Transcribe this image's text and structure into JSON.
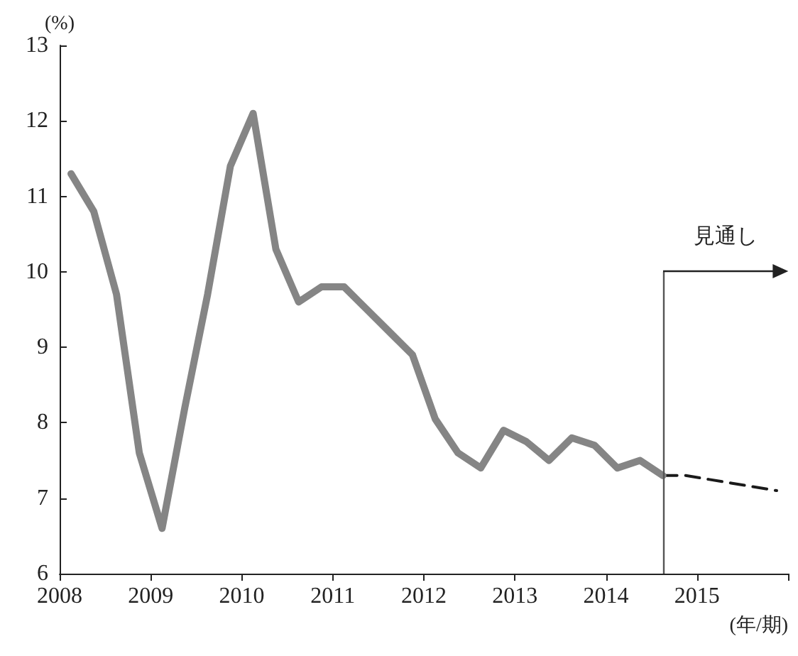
{
  "chart_data": {
    "type": "line",
    "ylabel": "(%)",
    "xlabel": "(年/期)",
    "xlim": [
      2008,
      2016
    ],
    "xticks": [
      2008,
      2009,
      2010,
      2011,
      2012,
      2013,
      2014,
      2015,
      {
        "value": 2016,
        "label": null
      }
    ],
    "ylim": [
      6,
      13
    ],
    "yticks": [
      6,
      7,
      8,
      9,
      10,
      11,
      12,
      13
    ],
    "grid": false,
    "marker": "none",
    "series": [
      {
        "color": "#858585",
        "line_style": "solid",
        "x": [
          2008.125,
          2008.375,
          2008.625,
          2008.875,
          2009.125,
          2009.375,
          2009.625,
          2009.875,
          2010.125,
          2010.375,
          2010.625,
          2010.875,
          2011.125,
          2011.375,
          2011.625,
          2011.875,
          2012.125,
          2012.375,
          2012.625,
          2012.875,
          2013.125,
          2013.375,
          2013.625,
          2013.875,
          2014.125,
          2014.375,
          2014.625
        ],
        "values": [
          11.3,
          10.8,
          9.7,
          7.6,
          6.6,
          8.2,
          9.7,
          11.4,
          12.1,
          10.3,
          9.6,
          9.8,
          9.8,
          9.5,
          9.2,
          8.9,
          8.05,
          7.6,
          7.4,
          7.9,
          7.75,
          7.5,
          7.8,
          7.7,
          7.4,
          7.5,
          7.3
        ]
      },
      {
        "color": "#1a1a1a",
        "line_style": "dashed",
        "x": [
          2014.625,
          2014.875,
          2015.125,
          2015.375,
          2015.625,
          2015.875
        ],
        "values": [
          7.3,
          7.3,
          7.25,
          7.2,
          7.15,
          7.1
        ]
      }
    ],
    "ref_lines": [
      {
        "axis": "x",
        "value": 2014.625,
        "label": "見通し",
        "color": "#555555"
      }
    ]
  }
}
